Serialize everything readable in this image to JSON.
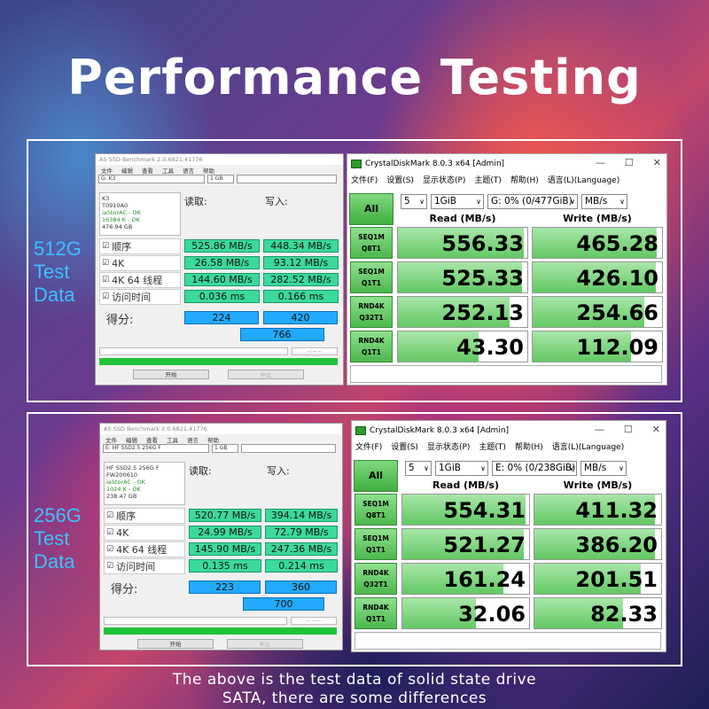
{
  "title": "Performance Testing",
  "footer": [
    "The above is the test data of solid state drive",
    "SATA, there are some differences"
  ],
  "panels": [
    {
      "side_label": [
        "512G",
        "Test",
        "Data"
      ],
      "asssd": {
        "window_title": "AS SSD Benchmark 2.0.6821.41776",
        "menu": [
          "文件",
          "编辑",
          "查看",
          "工具",
          "语言",
          "帮助"
        ],
        "drive_select": "G: K3",
        "size_select": "1 GB",
        "info": [
          "K3",
          "T0910A0",
          "iaStorAC - OK",
          "16384 K - OK",
          "476.94 GB"
        ],
        "read_header": "读取:",
        "write_header": "写入:",
        "rows": [
          {
            "label": "顺序",
            "read": "525.86 MB/s",
            "write": "448.34 MB/s"
          },
          {
            "label": "4K",
            "read": "26.58 MB/s",
            "write": "93.12 MB/s"
          },
          {
            "label": "4K 64 线程",
            "read": "144.60 MB/s",
            "write": "282.52 MB/s"
          },
          {
            "label": "访问时间",
            "read": "0.036 ms",
            "write": "0.166 ms"
          }
        ],
        "score_label": "得分:",
        "score_read": "224",
        "score_write": "420",
        "score_total": "766",
        "time_text": "--:--:--",
        "start_button": "开始",
        "abort_button": "中止"
      },
      "cdm": {
        "window_title": "CrystalDiskMark 8.0.3 x64 [Admin]",
        "menu": [
          "文件(F)",
          "设置(S)",
          "显示状态(P)",
          "主题(T)",
          "帮助(H)",
          "语言(L)(Language)"
        ],
        "all_button": "All",
        "count": "5",
        "size": "1GiB",
        "drive": "G: 0% (0/477GiB)",
        "unit": "MB/s",
        "read_header": "Read (MB/s)",
        "write_header": "Write (MB/s)",
        "rows": [
          {
            "l1": "SEQ1M",
            "l2": "Q8T1",
            "read": "556.33",
            "write": "465.28",
            "read_fill": 0.97,
            "write_fill": 0.96
          },
          {
            "l1": "SEQ1M",
            "l2": "Q1T1",
            "read": "525.33",
            "write": "426.10",
            "read_fill": 0.96,
            "write_fill": 0.95
          },
          {
            "l1": "RND4K",
            "l2": "Q32T1",
            "read": "252.13",
            "write": "254.66",
            "read_fill": 0.86,
            "write_fill": 0.86
          },
          {
            "l1": "RND4K",
            "l2": "Q1T1",
            "read": "43.30",
            "write": "112.09",
            "read_fill": 0.62,
            "write_fill": 0.76
          }
        ]
      }
    },
    {
      "side_label": [
        "256G",
        "Test",
        "Data"
      ],
      "asssd": {
        "window_title": "AS SSD Benchmark 2.0.6821.41776",
        "menu": [
          "文件",
          "编辑",
          "查看",
          "工具",
          "语言",
          "帮助"
        ],
        "drive_select": "E: HF SSD2.5 256G F",
        "size_select": "1 GB",
        "info": [
          "HF SSD2.5 256G F",
          "FW200610",
          "iaStorAC - OK",
          "1024 K - OK",
          "238.47 GB"
        ],
        "read_header": "读取:",
        "write_header": "写入:",
        "rows": [
          {
            "label": "顺序",
            "read": "520.77 MB/s",
            "write": "394.14 MB/s"
          },
          {
            "label": "4K",
            "read": "24.99 MB/s",
            "write": "72.79 MB/s"
          },
          {
            "label": "4K 64 线程",
            "read": "145.90 MB/s",
            "write": "247.36 MB/s"
          },
          {
            "label": "访问时间",
            "read": "0.135 ms",
            "write": "0.214 ms"
          }
        ],
        "score_label": "得分:",
        "score_read": "223",
        "score_write": "360",
        "score_total": "700",
        "time_text": "--:--:--",
        "start_button": "开始",
        "abort_button": "中止"
      },
      "cdm": {
        "window_title": "CrystalDiskMark 8.0.3 x64 [Admin]",
        "menu": [
          "文件(F)",
          "设置(S)",
          "显示状态(P)",
          "主题(T)",
          "帮助(H)",
          "语言(L)(Language)"
        ],
        "all_button": "All",
        "count": "5",
        "size": "1GiB",
        "drive": "E: 0% (0/238GiB)",
        "unit": "MB/s",
        "read_header": "Read (MB/s)",
        "write_header": "Write (MB/s)",
        "rows": [
          {
            "l1": "SEQ1M",
            "l2": "Q8T1",
            "read": "554.31",
            "write": "411.32",
            "read_fill": 0.97,
            "write_fill": 0.95
          },
          {
            "l1": "SEQ1M",
            "l2": "Q1T1",
            "read": "521.27",
            "write": "386.20",
            "read_fill": 0.96,
            "write_fill": 0.95
          },
          {
            "l1": "RND4K",
            "l2": "Q32T1",
            "read": "161.24",
            "write": "201.51",
            "read_fill": 0.8,
            "write_fill": 0.84
          },
          {
            "l1": "RND4K",
            "l2": "Q1T1",
            "read": "32.06",
            "write": "82.33",
            "read_fill": 0.58,
            "write_fill": 0.7
          }
        ]
      }
    }
  ]
}
